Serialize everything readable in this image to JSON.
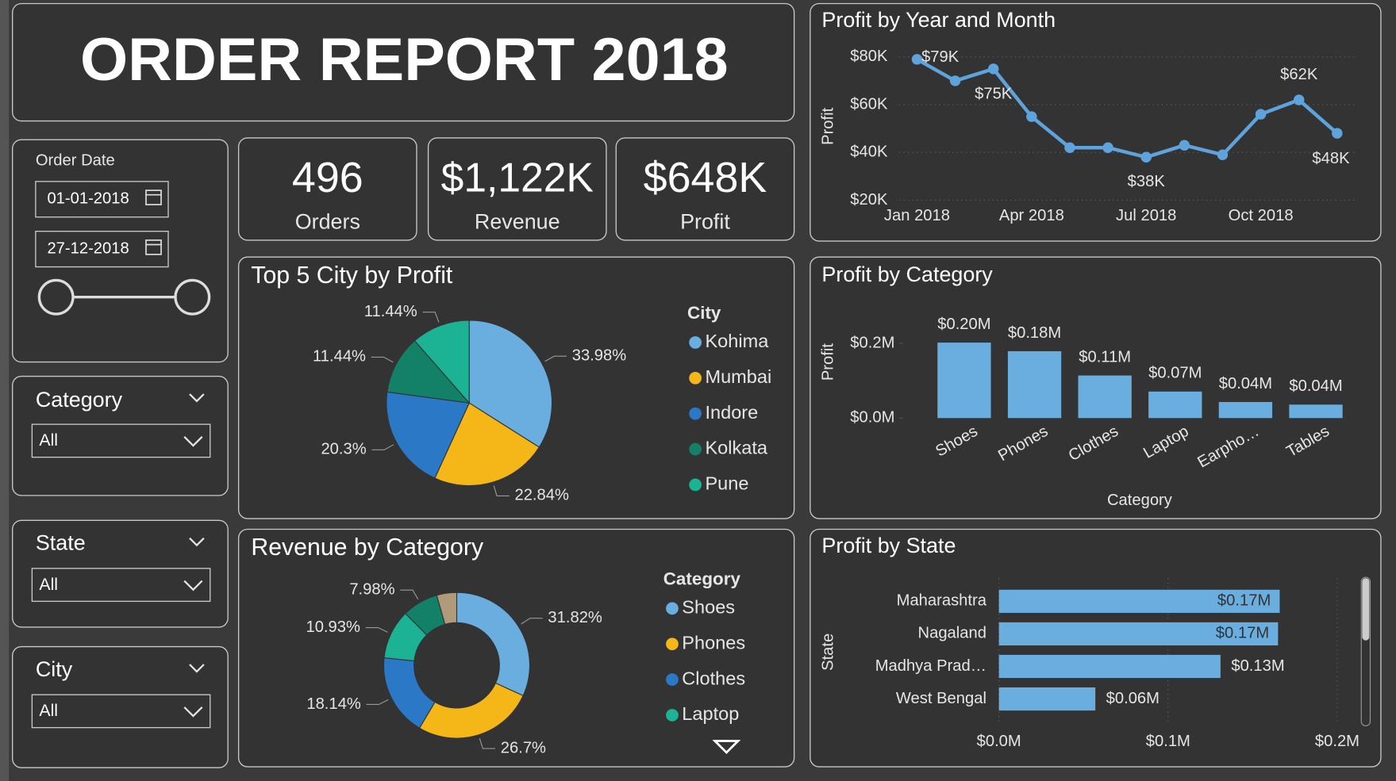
{
  "header": {
    "title": "ORDER REPORT 2018"
  },
  "filters": {
    "order_date": {
      "label": "Order Date",
      "start": "01-01-2018",
      "end": "27-12-2018"
    },
    "category": {
      "label": "Category",
      "value": "All"
    },
    "state": {
      "label": "State",
      "value": "All"
    },
    "city": {
      "label": "City",
      "value": "All"
    }
  },
  "kpis": [
    {
      "value": 496,
      "label": "Orders"
    },
    {
      "value": "$1,122K",
      "label": "Revenue"
    },
    {
      "value": "$648K",
      "label": "Profit"
    }
  ],
  "chart_data": [
    {
      "type": "line",
      "title": "Profit by Year and Month",
      "ylabel": "Profit",
      "categories": [
        "Jan 2018",
        null,
        null,
        "Apr 2018",
        null,
        null,
        "Jul 2018",
        null,
        null,
        "Oct 2018",
        null,
        null
      ],
      "values": [
        79000,
        70000,
        75000,
        55000,
        42000,
        42000,
        38000,
        43000,
        39000,
        56000,
        62000,
        48000
      ],
      "value_labels": [
        "$79K",
        null,
        "$75K",
        null,
        null,
        null,
        "$38K",
        null,
        null,
        null,
        "$62K",
        "$48K"
      ],
      "color": "#5ea3dc",
      "ylim": [
        20000,
        80000
      ],
      "yticks": [
        {
          "value": 20000,
          "label": "$20K"
        },
        {
          "value": 40000,
          "label": "$40K"
        },
        {
          "value": 60000,
          "label": "$60K"
        },
        {
          "value": 80000,
          "label": "$80K"
        }
      ],
      "grid": true
    },
    {
      "type": "pie",
      "title": "Top 5 City by Profit",
      "legend_title": "City",
      "categories": [
        "Kohima",
        "Mumbai",
        "Indore",
        "Kolkata",
        "Pune"
      ],
      "values": [
        33.98,
        22.84,
        20.3,
        11.44,
        11.44
      ],
      "value_labels": [
        "33.98%",
        "22.84%",
        "20.3%",
        "11.44%",
        "11.44%"
      ],
      "colors": [
        "#6aaee0",
        "#f5b618",
        "#2a78c6",
        "#138068",
        "#1bb394"
      ]
    },
    {
      "type": "donut",
      "title": "Revenue by Category",
      "legend_title": "Category",
      "categories": [
        "Shoes",
        "Phones",
        "Clothes",
        "Laptop",
        null,
        null
      ],
      "values": [
        31.82,
        26.7,
        18.14,
        10.93,
        7.98,
        4.43
      ],
      "value_labels": [
        "31.82%",
        "26.7%",
        "18.14%",
        "10.93%",
        "7.98%",
        null
      ],
      "colors": [
        "#6aaee0",
        "#f5b618",
        "#2a78c6",
        "#1bb394",
        "#138068",
        "#b09a7a"
      ]
    },
    {
      "type": "bar",
      "title": "Profit by Category",
      "xlabel": "Category",
      "ylabel": "Profit",
      "categories": [
        "Shoes",
        "Phones",
        "Clothes",
        "Laptop",
        "Earpho…",
        "Tables"
      ],
      "values": [
        202000,
        179000,
        114000,
        71000,
        43000,
        36000
      ],
      "value_labels": [
        "$0.20M",
        "$0.18M",
        "$0.11M",
        "$0.07M",
        "$0.04M",
        "$0.04M"
      ],
      "color": "#6aaee0",
      "ylim": [
        0,
        200000
      ],
      "yticks": [
        {
          "value": 0,
          "label": "$0.0M"
        },
        {
          "value": 200000,
          "label": "$0.2M"
        }
      ],
      "grid": false
    },
    {
      "type": "bar",
      "orientation": "horizontal",
      "title": "Profit by State",
      "ylabel": "State",
      "categories": [
        "Maharashtra",
        "Nagaland",
        "Madhya Prad…",
        "West Bengal"
      ],
      "values": [
        166000,
        165000,
        131000,
        57000
      ],
      "value_labels": [
        "$0.17M",
        "$0.17M",
        "$0.13M",
        "$0.06M"
      ],
      "color": "#6aaee0",
      "xlim": [
        0,
        200000
      ],
      "xticks": [
        {
          "value": 0,
          "label": "$0.0M"
        },
        {
          "value": 100000,
          "label": "$0.1M"
        },
        {
          "value": 200000,
          "label": "$0.2M"
        }
      ],
      "grid": true
    }
  ]
}
